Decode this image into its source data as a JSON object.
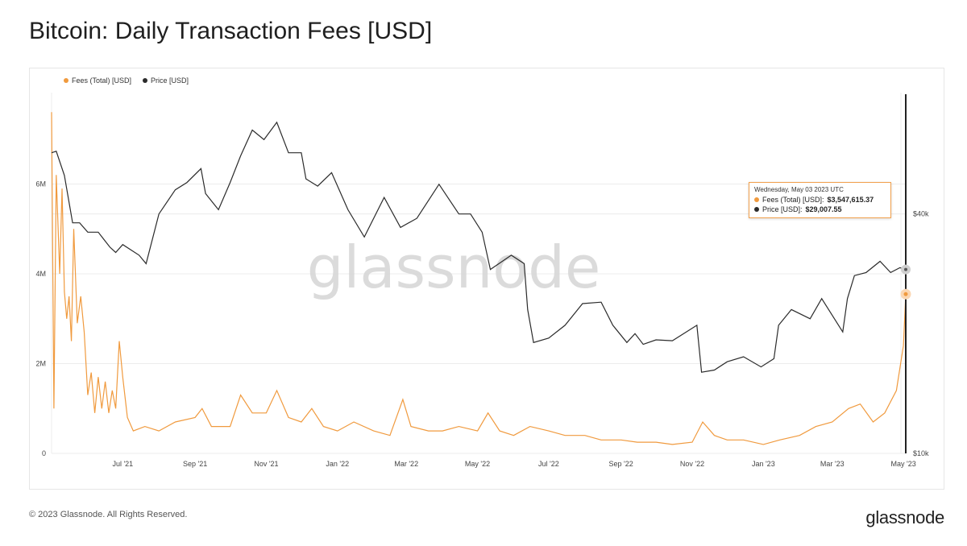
{
  "title": "Bitcoin: Daily Transaction Fees [USD]",
  "footer": {
    "copyright": "© 2023 Glassnode. All Rights Reserved.",
    "logo": "glassnode"
  },
  "watermark": "glassnode",
  "colors": {
    "fees": "#f09a3e",
    "price": "#2b2b2b",
    "grid": "#ececec"
  },
  "tooltip": {
    "date": "Wednesday, May 03 2023 UTC",
    "fees_label": "Fees (Total) [USD]:",
    "fees_value": "$3,547,615.37",
    "price_label": "Price [USD]:",
    "price_value": "$29,007.55"
  },
  "chart_data": {
    "type": "line",
    "title": "Bitcoin: Daily Transaction Fees [USD]",
    "legend_position": "top-left",
    "x_tick_labels": [
      "Jul '21",
      "Sep '21",
      "Nov '21",
      "Jan '22",
      "Mar '22",
      "May '22",
      "Jul '22",
      "Sep '22",
      "Nov '22",
      "Jan '23",
      "Mar '23",
      "May '23"
    ],
    "y_left": {
      "ticks": [
        0,
        2000000,
        4000000,
        6000000
      ],
      "tick_labels": [
        "0",
        "2M",
        "4M",
        "6M"
      ],
      "range": [
        0,
        8000000
      ]
    },
    "y_right": {
      "scale": "log",
      "ticks": [
        10000,
        40000
      ],
      "tick_labels": [
        "$10k",
        "$40k"
      ],
      "range": [
        10000,
        80000
      ]
    },
    "series": [
      {
        "name": "Fees (Total) [USD]",
        "axis": "left",
        "points": [
          [
            "2021-05-01",
            7600000
          ],
          [
            "2021-05-03",
            1000000
          ],
          [
            "2021-05-05",
            6200000
          ],
          [
            "2021-05-08",
            4000000
          ],
          [
            "2021-05-10",
            5900000
          ],
          [
            "2021-05-12",
            3600000
          ],
          [
            "2021-05-14",
            3000000
          ],
          [
            "2021-05-16",
            3500000
          ],
          [
            "2021-05-18",
            2500000
          ],
          [
            "2021-05-20",
            5000000
          ],
          [
            "2021-05-23",
            2900000
          ],
          [
            "2021-05-26",
            3500000
          ],
          [
            "2021-05-29",
            2700000
          ],
          [
            "2021-06-01",
            1300000
          ],
          [
            "2021-06-04",
            1800000
          ],
          [
            "2021-06-07",
            900000
          ],
          [
            "2021-06-10",
            1700000
          ],
          [
            "2021-06-13",
            1000000
          ],
          [
            "2021-06-16",
            1600000
          ],
          [
            "2021-06-19",
            900000
          ],
          [
            "2021-06-22",
            1400000
          ],
          [
            "2021-06-25",
            1000000
          ],
          [
            "2021-06-28",
            2500000
          ],
          [
            "2021-07-01",
            1700000
          ],
          [
            "2021-07-05",
            800000
          ],
          [
            "2021-07-10",
            500000
          ],
          [
            "2021-07-20",
            600000
          ],
          [
            "2021-08-01",
            500000
          ],
          [
            "2021-08-15",
            700000
          ],
          [
            "2021-09-01",
            800000
          ],
          [
            "2021-09-07",
            1000000
          ],
          [
            "2021-09-15",
            600000
          ],
          [
            "2021-10-01",
            600000
          ],
          [
            "2021-10-10",
            1300000
          ],
          [
            "2021-10-20",
            900000
          ],
          [
            "2021-11-01",
            900000
          ],
          [
            "2021-11-10",
            1400000
          ],
          [
            "2021-11-20",
            800000
          ],
          [
            "2021-12-01",
            700000
          ],
          [
            "2021-12-10",
            1000000
          ],
          [
            "2021-12-20",
            600000
          ],
          [
            "2022-01-01",
            500000
          ],
          [
            "2022-01-15",
            700000
          ],
          [
            "2022-02-01",
            500000
          ],
          [
            "2022-02-15",
            400000
          ],
          [
            "2022-02-26",
            1200000
          ],
          [
            "2022-03-05",
            600000
          ],
          [
            "2022-03-20",
            500000
          ],
          [
            "2022-04-01",
            500000
          ],
          [
            "2022-04-15",
            600000
          ],
          [
            "2022-05-01",
            500000
          ],
          [
            "2022-05-10",
            900000
          ],
          [
            "2022-05-20",
            500000
          ],
          [
            "2022-06-01",
            400000
          ],
          [
            "2022-06-15",
            600000
          ],
          [
            "2022-07-01",
            500000
          ],
          [
            "2022-07-15",
            400000
          ],
          [
            "2022-08-01",
            400000
          ],
          [
            "2022-08-15",
            300000
          ],
          [
            "2022-09-01",
            300000
          ],
          [
            "2022-09-15",
            250000
          ],
          [
            "2022-10-01",
            250000
          ],
          [
            "2022-10-15",
            200000
          ],
          [
            "2022-11-01",
            250000
          ],
          [
            "2022-11-10",
            700000
          ],
          [
            "2022-11-20",
            400000
          ],
          [
            "2022-12-01",
            300000
          ],
          [
            "2022-12-15",
            300000
          ],
          [
            "2023-01-01",
            200000
          ],
          [
            "2023-01-15",
            300000
          ],
          [
            "2023-02-01",
            400000
          ],
          [
            "2023-02-15",
            600000
          ],
          [
            "2023-03-01",
            700000
          ],
          [
            "2023-03-15",
            1000000
          ],
          [
            "2023-03-25",
            1100000
          ],
          [
            "2023-04-05",
            700000
          ],
          [
            "2023-04-15",
            900000
          ],
          [
            "2023-04-25",
            1400000
          ],
          [
            "2023-05-01",
            2400000
          ],
          [
            "2023-05-03",
            3547615
          ]
        ]
      },
      {
        "name": "Price [USD]",
        "axis": "right",
        "points": [
          [
            "2021-05-01",
            57000
          ],
          [
            "2021-05-05",
            57500
          ],
          [
            "2021-05-12",
            50000
          ],
          [
            "2021-05-19",
            38000
          ],
          [
            "2021-05-25",
            38000
          ],
          [
            "2021-06-01",
            36000
          ],
          [
            "2021-06-10",
            36000
          ],
          [
            "2021-06-20",
            33000
          ],
          [
            "2021-06-25",
            32000
          ],
          [
            "2021-07-01",
            33500
          ],
          [
            "2021-07-15",
            31500
          ],
          [
            "2021-07-21",
            30000
          ],
          [
            "2021-08-01",
            40000
          ],
          [
            "2021-08-15",
            46000
          ],
          [
            "2021-08-25",
            48000
          ],
          [
            "2021-09-06",
            52000
          ],
          [
            "2021-09-10",
            45000
          ],
          [
            "2021-09-21",
            41000
          ],
          [
            "2021-10-01",
            48000
          ],
          [
            "2021-10-10",
            56000
          ],
          [
            "2021-10-20",
            65000
          ],
          [
            "2021-10-30",
            61500
          ],
          [
            "2021-11-10",
            68000
          ],
          [
            "2021-11-20",
            57000
          ],
          [
            "2021-12-01",
            57000
          ],
          [
            "2021-12-05",
            49000
          ],
          [
            "2021-12-15",
            47000
          ],
          [
            "2021-12-27",
            50800
          ],
          [
            "2022-01-10",
            41000
          ],
          [
            "2022-01-24",
            35000
          ],
          [
            "2022-02-10",
            44000
          ],
          [
            "2022-02-24",
            37000
          ],
          [
            "2022-03-10",
            39000
          ],
          [
            "2022-03-29",
            47500
          ],
          [
            "2022-04-15",
            40000
          ],
          [
            "2022-04-25",
            40000
          ],
          [
            "2022-05-05",
            36000
          ],
          [
            "2022-05-12",
            29000
          ],
          [
            "2022-05-30",
            31500
          ],
          [
            "2022-06-10",
            30000
          ],
          [
            "2022-06-13",
            23000
          ],
          [
            "2022-06-18",
            19000
          ],
          [
            "2022-07-01",
            19500
          ],
          [
            "2022-07-15",
            21000
          ],
          [
            "2022-07-30",
            23800
          ],
          [
            "2022-08-15",
            24000
          ],
          [
            "2022-08-25",
            21000
          ],
          [
            "2022-09-06",
            19000
          ],
          [
            "2022-09-13",
            20000
          ],
          [
            "2022-09-20",
            18800
          ],
          [
            "2022-10-01",
            19300
          ],
          [
            "2022-10-15",
            19200
          ],
          [
            "2022-11-05",
            21000
          ],
          [
            "2022-11-09",
            16000
          ],
          [
            "2022-11-20",
            16200
          ],
          [
            "2022-12-01",
            17000
          ],
          [
            "2022-12-15",
            17500
          ],
          [
            "2022-12-30",
            16500
          ],
          [
            "2023-01-10",
            17300
          ],
          [
            "2023-01-14",
            21000
          ],
          [
            "2023-01-25",
            23000
          ],
          [
            "2023-02-10",
            21800
          ],
          [
            "2023-02-20",
            24500
          ],
          [
            "2023-03-10",
            20200
          ],
          [
            "2023-03-14",
            24500
          ],
          [
            "2023-03-20",
            28000
          ],
          [
            "2023-03-30",
            28500
          ],
          [
            "2023-04-11",
            30400
          ],
          [
            "2023-04-20",
            28500
          ],
          [
            "2023-04-28",
            29300
          ],
          [
            "2023-05-03",
            29007.55
          ]
        ]
      }
    ]
  }
}
